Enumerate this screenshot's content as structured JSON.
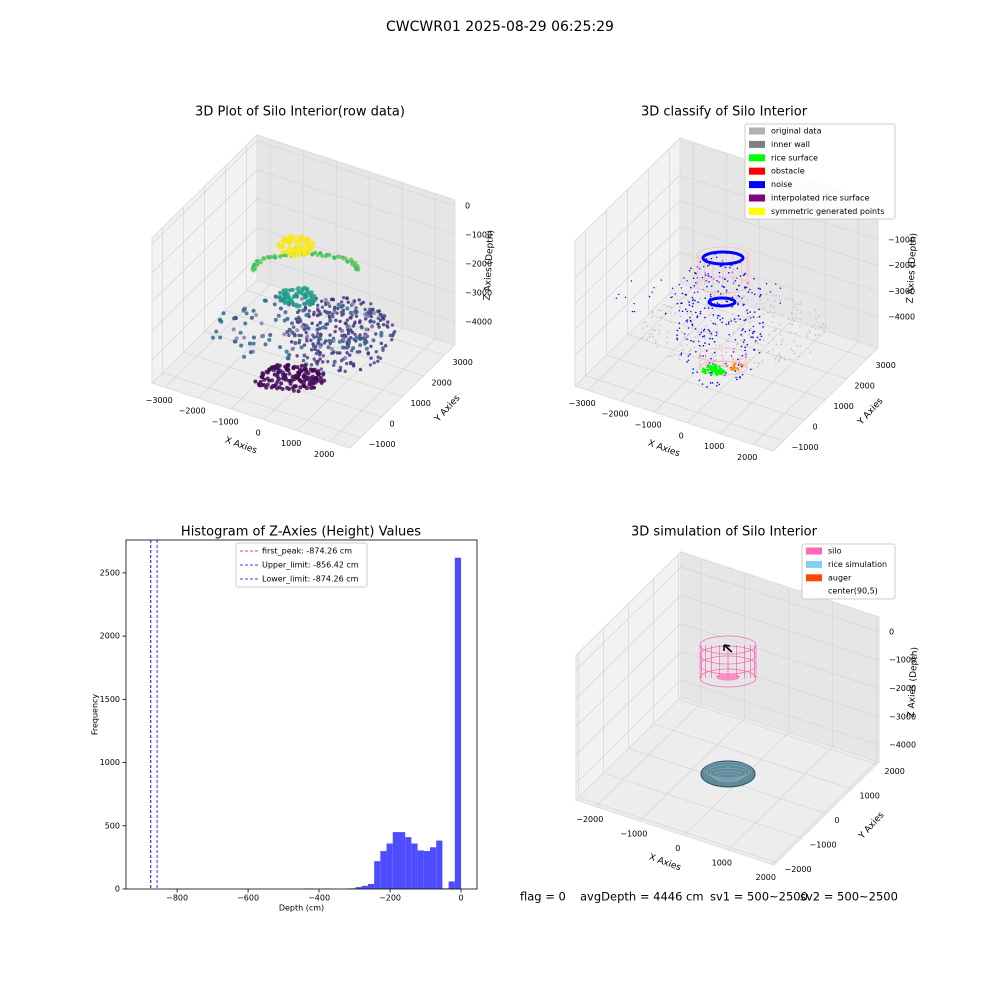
{
  "title": "CWCWR01 2025-08-29 06:25:29",
  "chart_data": [
    {
      "type": "scatter3d",
      "title": "3D Plot of Silo Interior(row data)",
      "x_label": "X Axies",
      "y_label": "Y Axies",
      "z_label": "Z Axies (Depth)",
      "xlim": [
        -3400,
        2600
      ],
      "ylim": [
        -1500,
        3500
      ],
      "zlim": [
        -4800,
        200
      ],
      "xticks": [
        {
          "value": -3000,
          "label": "−3000"
        },
        {
          "value": -2000,
          "label": "−2000"
        },
        {
          "value": -1000,
          "label": "−1000"
        },
        0,
        1000,
        2000
      ],
      "yticks": [
        {
          "value": -1000,
          "label": "−1000"
        },
        0,
        1000,
        2000,
        3000
      ],
      "zticks": [
        0,
        {
          "value": -1000,
          "label": "−1000"
        },
        {
          "value": -2000,
          "label": "−2000"
        },
        {
          "value": -3000,
          "label": "−3000"
        },
        {
          "value": -4000,
          "label": "−4000"
        }
      ]
    },
    {
      "type": "scatter3d",
      "title": "3D classify of Silo Interior",
      "x_label": "X Axies",
      "y_label": "Y Axies",
      "z_label": "Z Axies (Depth)",
      "xlim": [
        -3400,
        2600
      ],
      "ylim": [
        -1500,
        3500
      ],
      "zlim": [
        -5200,
        440
      ],
      "xticks": [
        {
          "value": -3000,
          "label": "−3000"
        },
        {
          "value": -2000,
          "label": "−2000"
        },
        {
          "value": -1000,
          "label": "−1000"
        },
        0,
        1000,
        2000
      ],
      "yticks": [
        {
          "value": -1000,
          "label": "−1000"
        },
        0,
        1000,
        2000,
        3000
      ],
      "zticks": [
        {
          "value": -1000,
          "label": "−1000"
        },
        {
          "value": -2000,
          "label": "−2000"
        },
        {
          "value": -3000,
          "label": "−3000"
        },
        {
          "value": -4000,
          "label": "−4000"
        }
      ],
      "legend": [
        {
          "name": "original data",
          "color": "#b0b0b0"
        },
        {
          "name": "inner wall",
          "color": "#808080"
        },
        {
          "name": "rice surface",
          "color": "#00ff00"
        },
        {
          "name": "obstacle",
          "color": "#ff0000"
        },
        {
          "name": "noise",
          "color": "#0000ff"
        },
        {
          "name": "interpolated rice surface",
          "color": "#800080"
        },
        {
          "name": "symmetric generated points",
          "color": "#ffff00"
        }
      ]
    },
    {
      "type": "histogram",
      "title": "Histogram of Z-Axies (Height) Values",
      "x_label": "Depth (cm)",
      "y_label": "Frequency",
      "color": "#4d4dff",
      "xlim": [
        -944,
        45
      ],
      "ylim": [
        0,
        2760
      ],
      "xticks": [
        {
          "value": -800,
          "label": "−800"
        },
        {
          "value": -600,
          "label": "−600"
        },
        {
          "value": -400,
          "label": "−400"
        },
        {
          "value": -200,
          "label": "−200"
        },
        0
      ],
      "yticks": [
        0,
        500,
        1000,
        1500,
        2000,
        2500
      ],
      "bins": [
        -874.26,
        -856.77,
        -839.29,
        -821.8,
        -804.32,
        -786.83,
        -769.35,
        -751.86,
        -734.38,
        -716.89,
        -699.41,
        -681.92,
        -664.44,
        -646.95,
        -629.47,
        -611.98,
        -594.5,
        -577.01,
        -559.53,
        -542.04,
        -524.56,
        -507.07,
        -489.59,
        -472.1,
        -454.62,
        -437.13,
        -419.64,
        -402.16,
        -384.67,
        -367.19,
        -349.7,
        -332.22,
        -314.73,
        -297.25,
        -279.76,
        -262.28,
        -244.79,
        -227.31,
        -209.82,
        -192.34,
        -174.85,
        -157.37,
        -139.88,
        -122.4,
        -104.91,
        -87.43,
        -69.94,
        -52.46,
        -34.97,
        -17.49,
        0
      ],
      "values": [
        0,
        0,
        0,
        0,
        0,
        0,
        0,
        0,
        0,
        0,
        0,
        0,
        0,
        0,
        0,
        0,
        0,
        0,
        0,
        0,
        0,
        0,
        0,
        0,
        0,
        4,
        0,
        0,
        3,
        0,
        0,
        2,
        5,
        15,
        25,
        40,
        220,
        300,
        360,
        450,
        450,
        410,
        360,
        305,
        300,
        330,
        383,
        5,
        60,
        2620
      ],
      "vlines": [
        {
          "name": "first_peak: -874.26 cm",
          "value": -874.26,
          "color": "#ff0000"
        },
        {
          "name": "Upper_limit: -856.42 cm",
          "value": -856.42,
          "color": "#0000ff"
        },
        {
          "name": "Lower_limit: -874.26 cm",
          "value": -874.26,
          "color": "#0000ff"
        }
      ]
    },
    {
      "type": "scatter3d",
      "title": "3D simulation of Silo Interior",
      "x_label": "X Axies",
      "y_label": "Y Axies",
      "z_label": "Z Axies (Depth)",
      "xlim": [
        -2450,
        2050
      ],
      "ylim": [
        -2100,
        2100
      ],
      "zlim": [
        -4600,
        530
      ],
      "xticks": [
        {
          "value": -2000,
          "label": "−2000"
        },
        {
          "value": -1000,
          "label": "−1000"
        },
        0,
        1000,
        2000
      ],
      "yticks": [
        {
          "value": -2000,
          "label": "−2000"
        },
        {
          "value": -1000,
          "label": "−1000"
        },
        0,
        1000,
        2000
      ],
      "zticks": [
        0,
        {
          "value": -1000,
          "label": "−1000"
        },
        {
          "value": -2000,
          "label": "−2000"
        },
        {
          "value": -3000,
          "label": "−3000"
        },
        {
          "value": -4000,
          "label": "−4000"
        }
      ],
      "legend": [
        {
          "name": "silo",
          "color": "#ff69b4"
        },
        {
          "name": "rice simulation",
          "color": "#87ceeb"
        },
        {
          "name": "auger",
          "color": "#ff4500"
        },
        {
          "name": "center(90,5)",
          "color": "#ffffff"
        }
      ]
    }
  ],
  "footer": {
    "flag": "flag = 0",
    "avg": "avgDepth = 4446 cm",
    "sv1": "sv1 = 500~2500",
    "sv2": "sv2 = 500~2500"
  }
}
